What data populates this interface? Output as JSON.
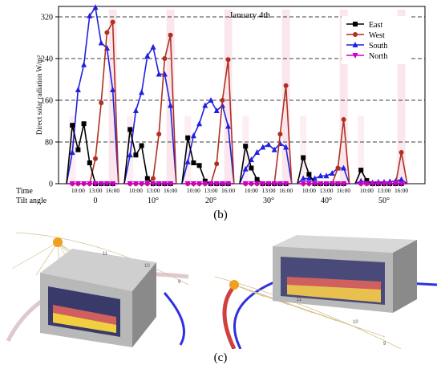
{
  "chart_data": {
    "type": "line",
    "title": "January 4th",
    "ylabel": "Direct solar radiation W/m²",
    "ylim": [
      0,
      340
    ],
    "yticks": [
      0,
      80,
      160,
      240,
      320
    ],
    "grid": "horizontal dashed",
    "legend_position": "top-right",
    "row_labels": {
      "time": "Time",
      "tilt": "Tilt angle"
    },
    "time_ticks": [
      "10:00",
      "13:00",
      "16:00"
    ],
    "groups": [
      "0",
      "10°",
      "20°",
      "30°",
      "40°",
      "50°"
    ],
    "hours": [
      8,
      9,
      10,
      11,
      12,
      13,
      14,
      15,
      16,
      17
    ],
    "series": [
      {
        "name": "East",
        "color": "#000000",
        "marker": "square",
        "values": [
          [
            0,
            112,
            65,
            115,
            40,
            0,
            0,
            0,
            0,
            0
          ],
          [
            0,
            104,
            55,
            73,
            10,
            0,
            0,
            0,
            0,
            0
          ],
          [
            0,
            88,
            40,
            35,
            5,
            0,
            0,
            0,
            0,
            0
          ],
          [
            0,
            72,
            30,
            8,
            0,
            0,
            0,
            0,
            0,
            0
          ],
          [
            0,
            50,
            18,
            0,
            0,
            0,
            0,
            0,
            0,
            0
          ],
          [
            0,
            26,
            6,
            0,
            0,
            0,
            0,
            0,
            0,
            0
          ]
        ]
      },
      {
        "name": "West",
        "color": "#b03020",
        "marker": "circle",
        "values": [
          [
            0,
            0,
            0,
            0,
            0,
            48,
            155,
            290,
            310,
            0
          ],
          [
            0,
            0,
            0,
            0,
            0,
            10,
            95,
            240,
            285,
            0
          ],
          [
            0,
            0,
            0,
            0,
            0,
            0,
            38,
            160,
            238,
            0
          ],
          [
            0,
            0,
            0,
            0,
            0,
            0,
            0,
            95,
            188,
            0
          ],
          [
            0,
            0,
            0,
            0,
            0,
            0,
            0,
            30,
            123,
            0
          ],
          [
            0,
            0,
            0,
            0,
            0,
            0,
            0,
            0,
            60,
            0
          ]
        ]
      },
      {
        "name": "South",
        "color": "#2020e0",
        "marker": "triangle",
        "values": [
          [
            0,
            60,
            180,
            228,
            322,
            338,
            270,
            260,
            180,
            0
          ],
          [
            0,
            55,
            140,
            175,
            245,
            262,
            210,
            210,
            150,
            0
          ],
          [
            0,
            42,
            92,
            115,
            150,
            160,
            140,
            150,
            110,
            0
          ],
          [
            0,
            28,
            46,
            60,
            70,
            75,
            65,
            77,
            70,
            0
          ],
          [
            0,
            10,
            10,
            10,
            15,
            15,
            20,
            30,
            30,
            0
          ],
          [
            0,
            5,
            2,
            2,
            3,
            3,
            4,
            5,
            8,
            0
          ]
        ]
      },
      {
        "name": "North",
        "color": "#cc00cc",
        "marker": "down-triangle",
        "values": [
          [
            0,
            0,
            0,
            0,
            0,
            0,
            0,
            0,
            0,
            0
          ],
          [
            0,
            0,
            0,
            0,
            0,
            0,
            0,
            0,
            0,
            0
          ],
          [
            0,
            0,
            0,
            0,
            0,
            0,
            0,
            0,
            0,
            0
          ],
          [
            0,
            0,
            0,
            0,
            0,
            0,
            0,
            0,
            0,
            0
          ],
          [
            0,
            0,
            0,
            0,
            0,
            0,
            0,
            0,
            0,
            0
          ],
          [
            0,
            0,
            0,
            0,
            0,
            0,
            0,
            0,
            0,
            0
          ]
        ]
      }
    ]
  },
  "captions": {
    "b": "(b)",
    "c": "(c)"
  },
  "render_labels": {
    "left": [
      "11",
      "10",
      "9"
    ],
    "right": [
      "11",
      "10",
      "9"
    ]
  },
  "colors": {
    "box": "#b8b8b8",
    "box_dark": "#8a8a8a",
    "sun": "#f0a020",
    "orbit_blue": "#3030e0",
    "orbit_red": "#d04040",
    "sun_rays": "#d8c090"
  }
}
